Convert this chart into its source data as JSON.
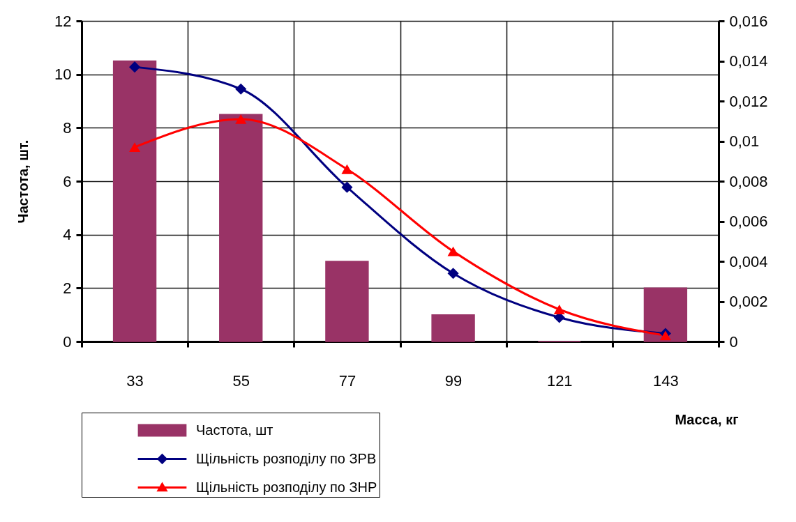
{
  "chart_data": {
    "type": "bar",
    "categories": [
      "33",
      "55",
      "77",
      "99",
      "121",
      "143"
    ],
    "xlabel": "Масса, кг",
    "ylabel": "Частота, шт.",
    "series": [
      {
        "name": "Частота, шт",
        "color": "#993366",
        "values": [
          10.5,
          8.5,
          3,
          1,
          0,
          2
        ]
      },
      {
        "name": "Щільність розподілу по ЗРВ",
        "type": "line",
        "axis": "y2",
        "marker": "diamond",
        "color": "#000080",
        "values": [
          0.0137,
          0.0126,
          0.0077,
          0.0034,
          0.0012,
          0.0004
        ]
      },
      {
        "name": "Щільність розподілу по ЗНР",
        "type": "line",
        "axis": "y2",
        "marker": "triangle",
        "color": "#ff0000",
        "values": [
          0.0097,
          0.0111,
          0.0086,
          0.0045,
          0.0016,
          0.0003
        ]
      }
    ],
    "ylim": [
      0,
      12
    ],
    "yticks": [
      0,
      2,
      4,
      6,
      8,
      10,
      12
    ],
    "y2lim": [
      0,
      0.016
    ],
    "y2ticks": [
      0,
      {
        "value": 0.002,
        "label": "0,002"
      },
      {
        "value": 0.004,
        "label": "0,004"
      },
      {
        "value": 0.006,
        "label": "0,006"
      },
      {
        "value": 0.008,
        "label": "0,008"
      },
      {
        "value": 0.01,
        "label": "0,01"
      },
      {
        "value": 0.012,
        "label": "0,012"
      },
      {
        "value": 0.014,
        "label": "0,014"
      },
      {
        "value": 0.016,
        "label": "0,016"
      }
    ],
    "grid": true,
    "legend": "bottom"
  }
}
